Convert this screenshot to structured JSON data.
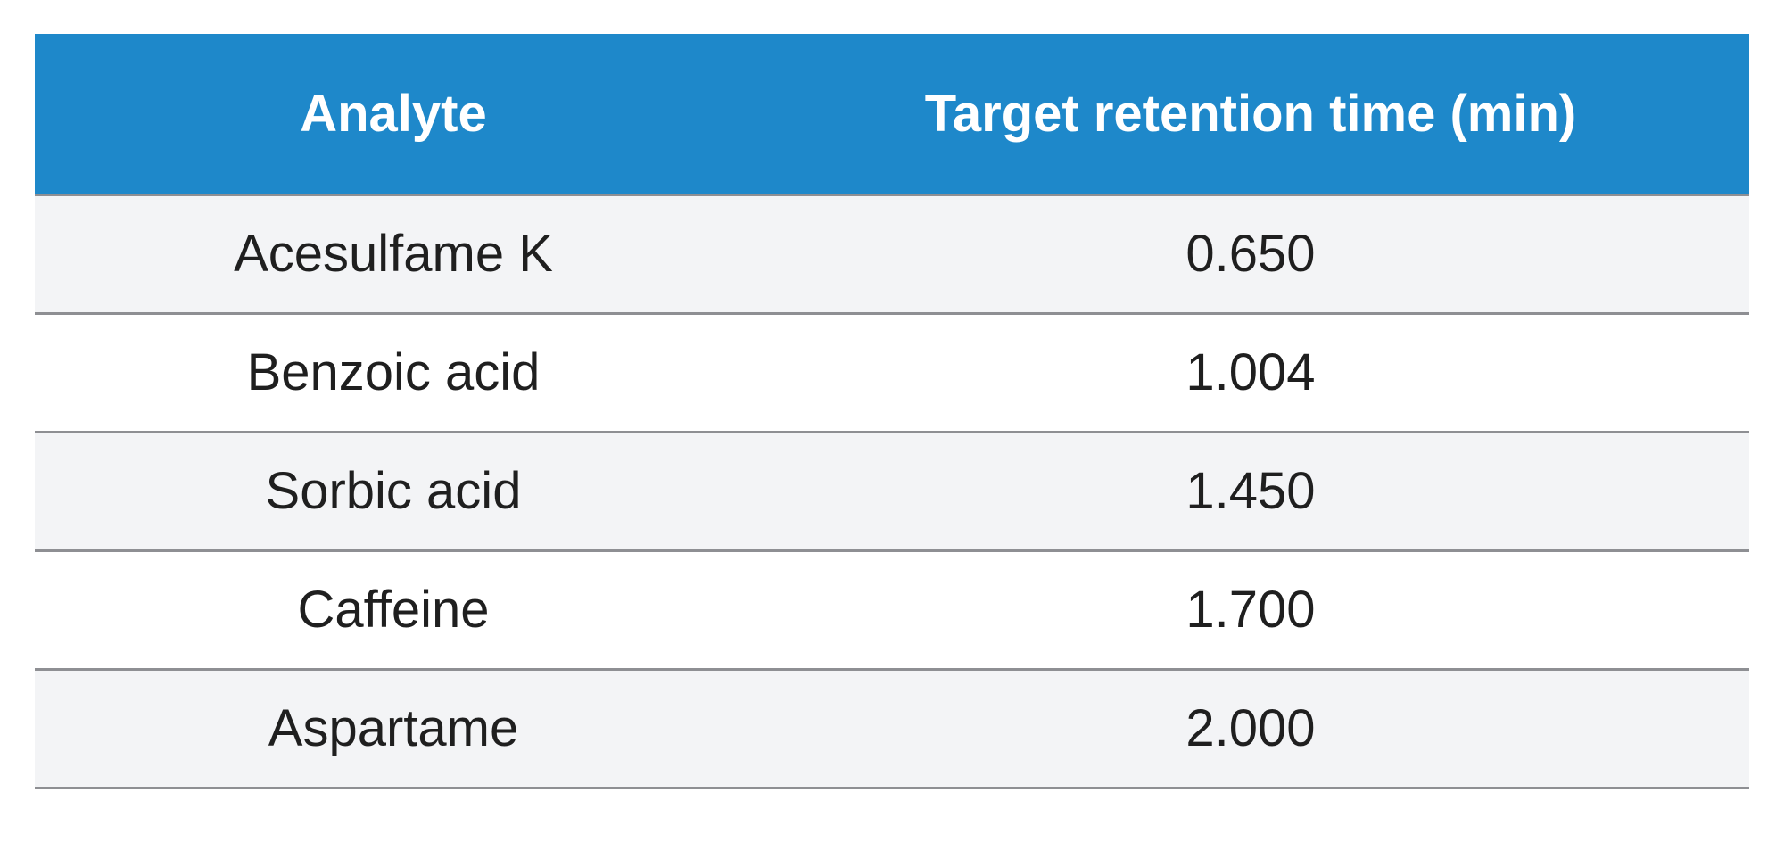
{
  "table": {
    "headers": [
      "Analyte",
      "Target retention time (min)"
    ],
    "rows": [
      [
        "Acesulfame K",
        "0.650"
      ],
      [
        "Benzoic acid",
        "1.004"
      ],
      [
        "Sorbic acid",
        "1.450"
      ],
      [
        "Caffeine",
        "1.700"
      ],
      [
        "Aspartame",
        "2.000"
      ]
    ]
  },
  "colors": {
    "header_bg": "#1e88ca",
    "header_text": "#ffffff",
    "row_shaded_bg": "#f3f4f6",
    "row_plain_bg": "#ffffff",
    "divider": "#8e8f93",
    "body_text": "#1f1f1f"
  }
}
